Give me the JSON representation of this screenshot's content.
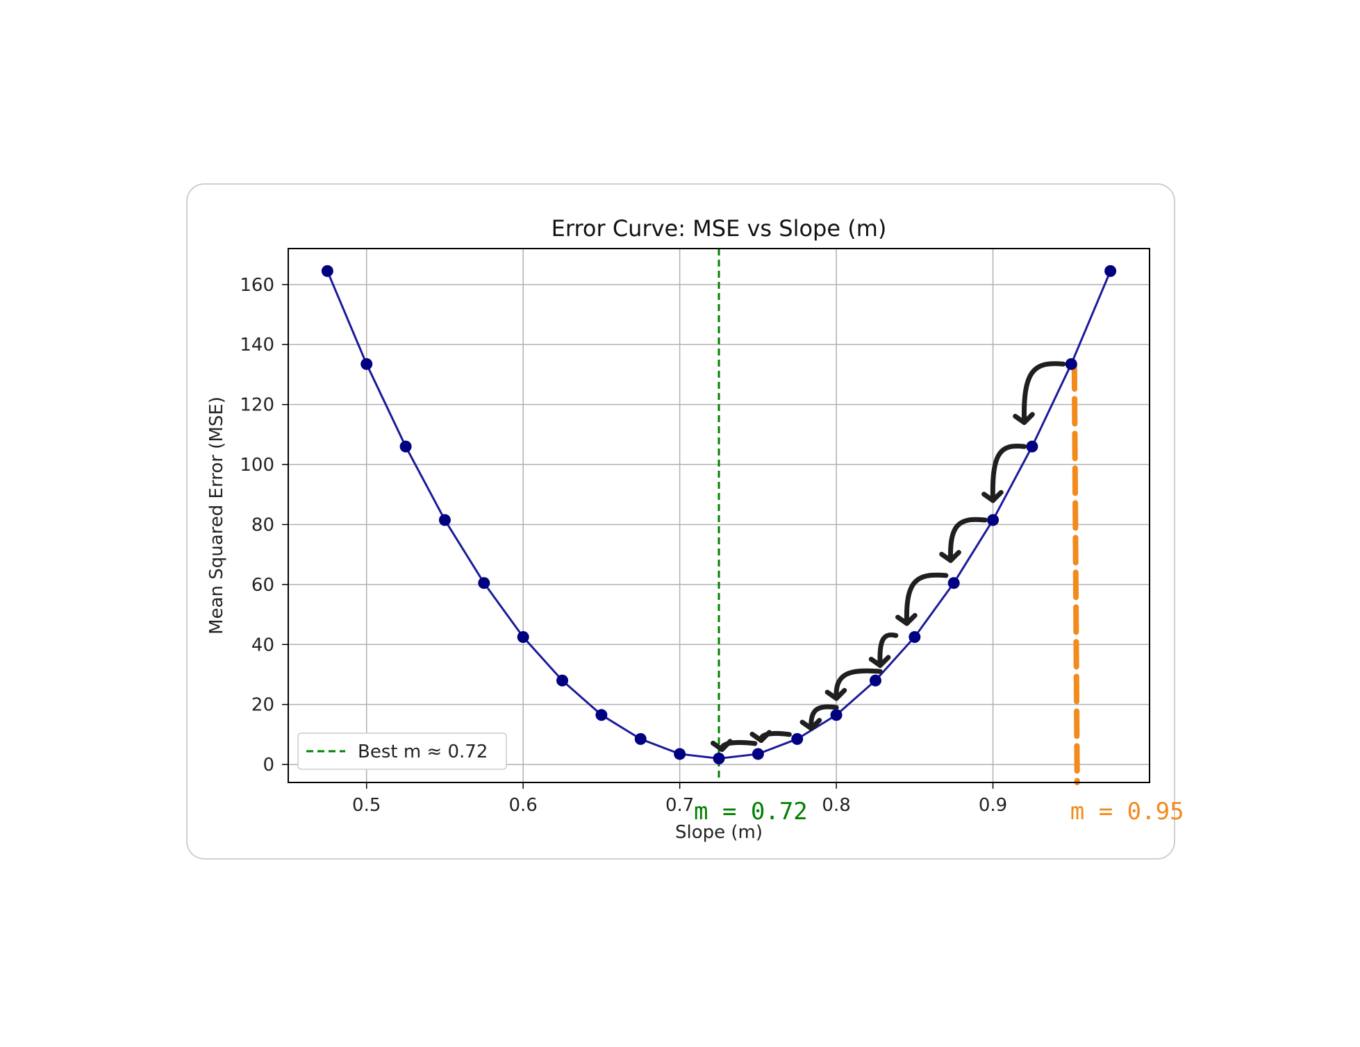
{
  "chart_data": {
    "type": "line",
    "title": "Error Curve: MSE vs Slope (m)",
    "xlabel": "Slope (m)",
    "ylabel": "Mean Squared Error (MSE)",
    "xlim": [
      0.45,
      1.0
    ],
    "ylim": [
      -6,
      172
    ],
    "xticks": [
      0.5,
      0.6,
      0.7,
      0.8,
      0.9
    ],
    "xtick_labels": [
      "0.5",
      "0.6",
      "0.7",
      "0.8",
      "0.9"
    ],
    "yticks": [
      0,
      20,
      40,
      60,
      80,
      100,
      120,
      140,
      160
    ],
    "ytick_labels": [
      "0",
      "20",
      "40",
      "60",
      "80",
      "100",
      "120",
      "140",
      "160"
    ],
    "grid": true,
    "series": [
      {
        "x": [
          0.475,
          0.5,
          0.525,
          0.55,
          0.575,
          0.6,
          0.625,
          0.65,
          0.675,
          0.7,
          0.725,
          0.75,
          0.775,
          0.8,
          0.825,
          0.85,
          0.875,
          0.9,
          0.925,
          0.95,
          0.975
        ],
        "y": [
          164.5,
          133.5,
          106,
          81.5,
          60.5,
          42.5,
          28,
          16.5,
          8.5,
          3.5,
          2,
          3.5,
          8.5,
          16.5,
          28,
          42.5,
          60.5,
          81.5,
          106,
          133.5,
          164.5
        ],
        "color": "#1a1a9a",
        "marker_color": "#000080"
      }
    ],
    "reference_lines": [
      {
        "x": 0.725,
        "color": "#008000",
        "style": "dashed",
        "legend": "Best m ≈ 0.72"
      },
      {
        "x": 0.952,
        "color": "#f28a1c",
        "style": "dashed-thick"
      }
    ],
    "legend": {
      "position": "lower-left",
      "entries": [
        "Best m ≈ 0.72"
      ]
    },
    "annotations": [
      {
        "text": "m = 0.72",
        "x": 0.725,
        "color": "#008000"
      },
      {
        "text": "m = 0.95",
        "x": 0.952,
        "color": "#f28a1c"
      }
    ],
    "step_arrows": [
      {
        "from": [
          0.945,
          133.5
        ],
        "to": [
          0.92,
          114
        ]
      },
      {
        "from": [
          0.92,
          106
        ],
        "to": [
          0.9,
          88
        ]
      },
      {
        "from": [
          0.895,
          81.5
        ],
        "to": [
          0.873,
          68
        ]
      },
      {
        "from": [
          0.87,
          63
        ],
        "to": [
          0.845,
          47
        ]
      },
      {
        "from": [
          0.838,
          43
        ],
        "to": [
          0.828,
          33
        ]
      },
      {
        "from": [
          0.828,
          31
        ],
        "to": [
          0.8,
          22
        ]
      },
      {
        "from": [
          0.8,
          19
        ],
        "to": [
          0.784,
          12
        ]
      },
      {
        "from": [
          0.77,
          10
        ],
        "to": [
          0.752,
          8
        ]
      },
      {
        "from": [
          0.748,
          7
        ],
        "to": [
          0.727,
          5
        ]
      }
    ],
    "colors": {
      "line": "#1a1a9a",
      "marker": "#000080",
      "best": "#008000",
      "start": "#f28a1c",
      "arrow": "#1f1f1f",
      "grid": "#b0b0b0"
    }
  }
}
